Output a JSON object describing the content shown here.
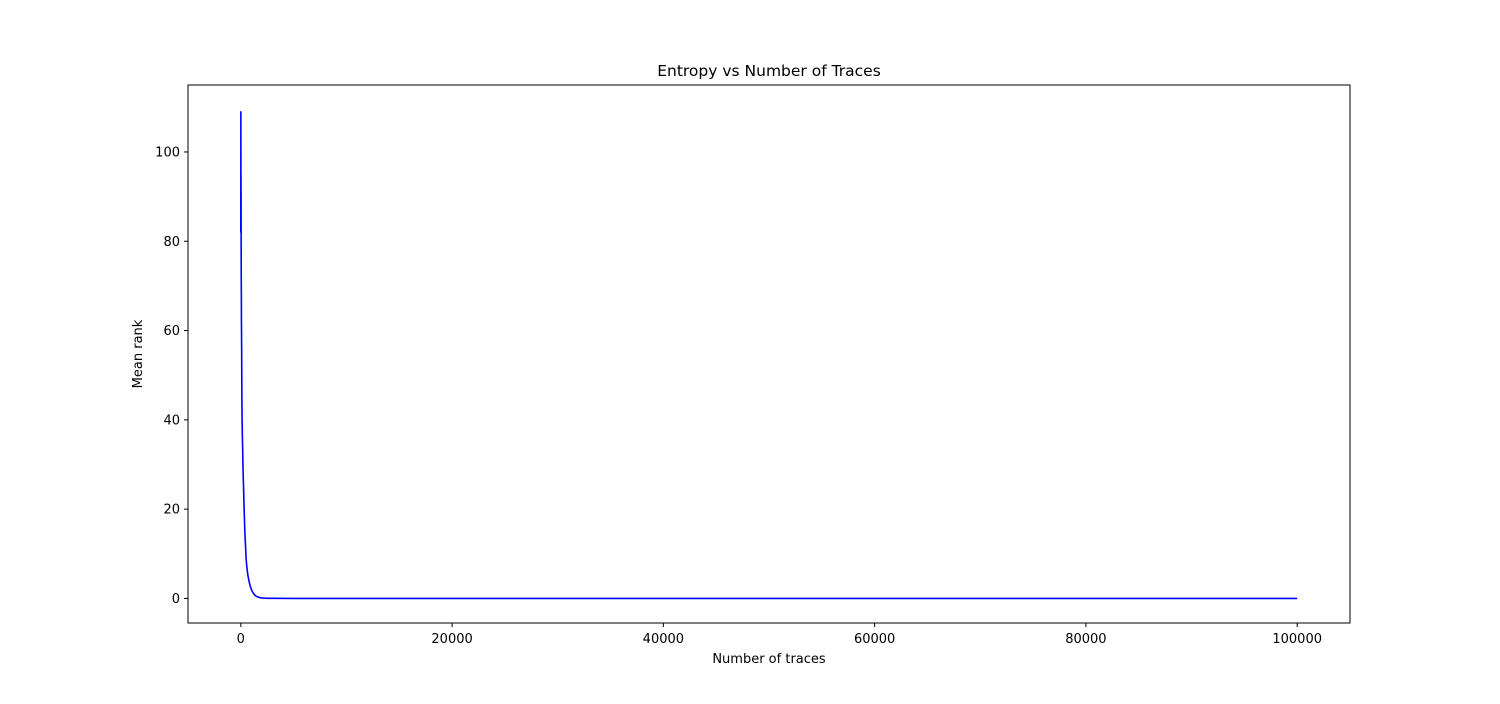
{
  "chart_data": {
    "type": "line",
    "title": "Entropy vs Number of Traces",
    "xlabel": "Number of traces",
    "ylabel": "Mean rank",
    "xlim": [
      -5000,
      105000
    ],
    "ylim": [
      -5.5,
      115
    ],
    "x_ticks": [
      0,
      20000,
      40000,
      60000,
      80000,
      100000
    ],
    "x_tick_labels": [
      "0",
      "20000",
      "40000",
      "60000",
      "80000",
      "100000"
    ],
    "y_ticks": [
      0,
      20,
      40,
      60,
      80,
      100
    ],
    "y_tick_labels": [
      "0",
      "20",
      "40",
      "60",
      "80",
      "100"
    ],
    "grid": false,
    "legend": "none",
    "series": [
      {
        "color": "#0000ff",
        "x": [
          0,
          5,
          10,
          15,
          20,
          25,
          30,
          40,
          50,
          60,
          80,
          100,
          120,
          150,
          180,
          200,
          230,
          260,
          300,
          340,
          380,
          420,
          460,
          500,
          550,
          600,
          650,
          700,
          800,
          900,
          1000,
          1100,
          1200,
          1300,
          1400,
          1500,
          1600,
          1700,
          1800,
          2000,
          2200,
          2500,
          3000,
          5000,
          10000,
          30000,
          60000,
          100000
        ],
        "y": [
          82,
          109,
          92,
          95,
          85,
          91,
          80,
          72,
          68,
          62,
          55,
          45,
          40,
          36,
          33,
          30,
          27,
          25,
          21,
          18,
          15,
          13,
          11,
          9,
          7.5,
          6.5,
          5.5,
          4.8,
          3.6,
          2.7,
          2,
          1.5,
          1.1,
          0.8,
          0.6,
          0.45,
          0.35,
          0.27,
          0.2,
          0.12,
          0.08,
          0.04,
          0.02,
          0,
          0,
          0,
          0,
          0
        ]
      }
    ]
  }
}
